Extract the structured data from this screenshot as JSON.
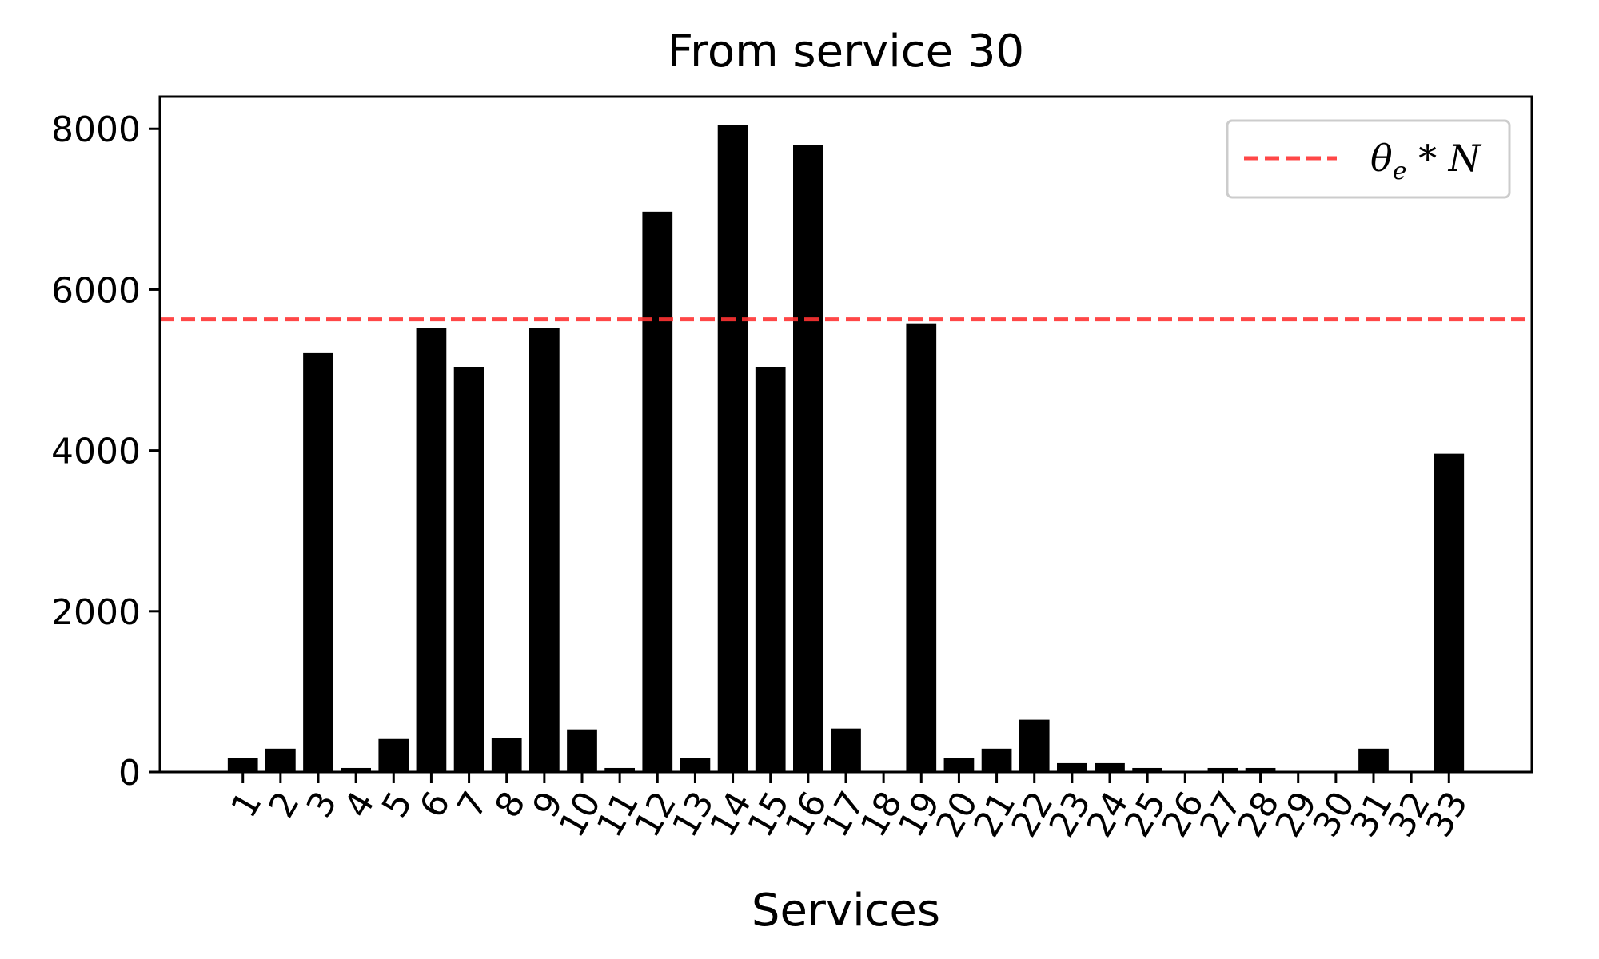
{
  "chart_data": {
    "type": "bar",
    "title": "From service 30",
    "xlabel": "Services",
    "ylabel": "",
    "ylim": [
      0,
      8400
    ],
    "yticks": [
      0,
      2000,
      4000,
      6000,
      8000
    ],
    "categories": [
      "1",
      "2",
      "3",
      "4",
      "5",
      "6",
      "7",
      "8",
      "9",
      "10",
      "11",
      "12",
      "13",
      "14",
      "15",
      "16",
      "17",
      "18",
      "19",
      "20",
      "21",
      "22",
      "23",
      "24",
      "25",
      "26",
      "27",
      "28",
      "29",
      "30",
      "31",
      "32",
      "33"
    ],
    "values": [
      170,
      290,
      5210,
      50,
      410,
      5520,
      5040,
      420,
      5520,
      530,
      50,
      6970,
      170,
      8050,
      5040,
      7800,
      540,
      0,
      5580,
      170,
      290,
      650,
      110,
      110,
      50,
      0,
      50,
      50,
      0,
      0,
      290,
      0,
      3960
    ],
    "bar_color": "#000000",
    "threshold": {
      "value": 5630,
      "label": "θ",
      "label_sub": "e",
      "label_rest": " * N",
      "color": "#ff3333",
      "style": "dashed"
    },
    "legend_position": "top-right",
    "grid": false
  }
}
